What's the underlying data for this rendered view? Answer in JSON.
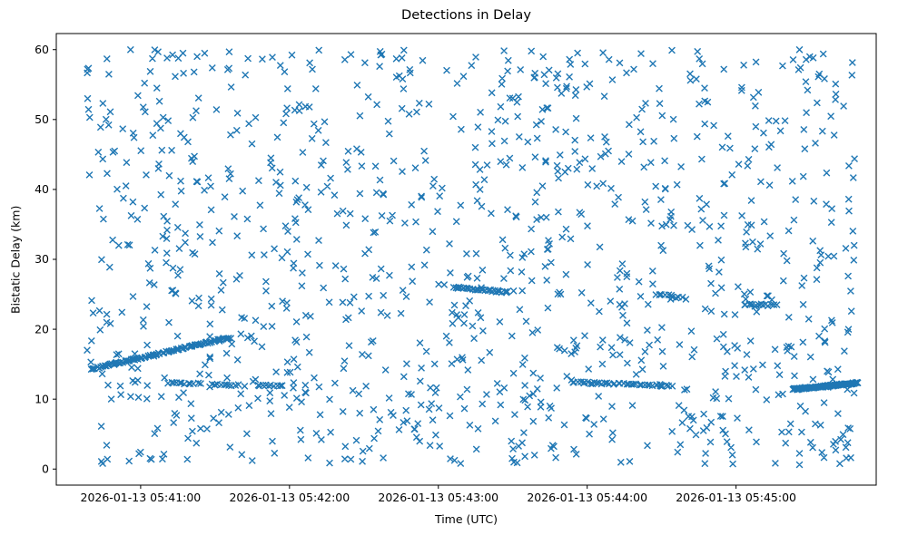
{
  "chart_data": {
    "type": "scatter",
    "title": "Detections in Delay",
    "xlabel": "Time (UTC)",
    "ylabel": "Bistatic Delay (km)",
    "marker": "x",
    "color": "#1f77b4",
    "grid": false,
    "legend_position": "none",
    "x_tick_labels": [
      "2026-01-13 05:41:00",
      "2026-01-13 05:42:00",
      "2026-01-13 05:43:00",
      "2026-01-13 05:44:00",
      "2026-01-13 05:45:00"
    ],
    "x_tick_seconds": [
      0,
      60,
      120,
      180,
      240
    ],
    "y_ticks": [
      0,
      10,
      20,
      30,
      40,
      50,
      60
    ],
    "xlim_seconds": [
      -34,
      296.5
    ],
    "ylim": [
      -2.3,
      62.3
    ],
    "random_seed": 20260113,
    "series": [
      {
        "name": "clutter",
        "kind": "uniform_noise",
        "count": 1150,
        "x_range": [
          -22,
          288
        ],
        "y_range": [
          0.5,
          60
        ]
      },
      {
        "name": "track-ascending-0541",
        "kind": "track",
        "x_start": -20,
        "x_end": 36,
        "y_start": 14.3,
        "y_end": 18.8,
        "count": 95,
        "y_jitter": 0.12,
        "x_jitter": 1.2
      },
      {
        "name": "track-12km-a",
        "kind": "track",
        "x_start": 11,
        "x_end": 24,
        "y_start": 12.3,
        "y_end": 12.2,
        "count": 12,
        "y_jitter": 0.1,
        "x_jitter": 1.0
      },
      {
        "name": "track-12km-b",
        "kind": "track",
        "x_start": 29,
        "x_end": 39,
        "y_start": 12.1,
        "y_end": 12.0,
        "count": 10,
        "y_jitter": 0.1,
        "x_jitter": 1.0
      },
      {
        "name": "track-12km-c",
        "kind": "track",
        "x_start": 47,
        "x_end": 57,
        "y_start": 12.0,
        "y_end": 11.9,
        "count": 10,
        "y_jitter": 0.1,
        "x_jitter": 1.0
      },
      {
        "name": "track-26km-0543",
        "kind": "track",
        "x_start": 126,
        "x_end": 148,
        "y_start": 26.0,
        "y_end": 25.3,
        "count": 30,
        "y_jitter": 0.12,
        "x_jitter": 1.0
      },
      {
        "name": "track-12km-0544",
        "kind": "track",
        "x_start": 174,
        "x_end": 214,
        "y_start": 12.4,
        "y_end": 11.9,
        "count": 38,
        "y_jitter": 0.12,
        "x_jitter": 1.0
      },
      {
        "name": "cluster-25km-0544",
        "kind": "track",
        "x_start": 208,
        "x_end": 218,
        "y_start": 25.0,
        "y_end": 24.5,
        "count": 10,
        "y_jitter": 0.15,
        "x_jitter": 1.0
      },
      {
        "name": "track-23km-0545",
        "kind": "track",
        "x_start": 243,
        "x_end": 256,
        "y_start": 23.6,
        "y_end": 23.4,
        "count": 14,
        "y_jitter": 0.12,
        "x_jitter": 1.0
      },
      {
        "name": "track-ascending-0545",
        "kind": "track",
        "x_start": 263,
        "x_end": 289,
        "y_start": 11.4,
        "y_end": 12.3,
        "count": 115,
        "y_jitter": 0.1,
        "x_jitter": 0.8
      }
    ]
  }
}
